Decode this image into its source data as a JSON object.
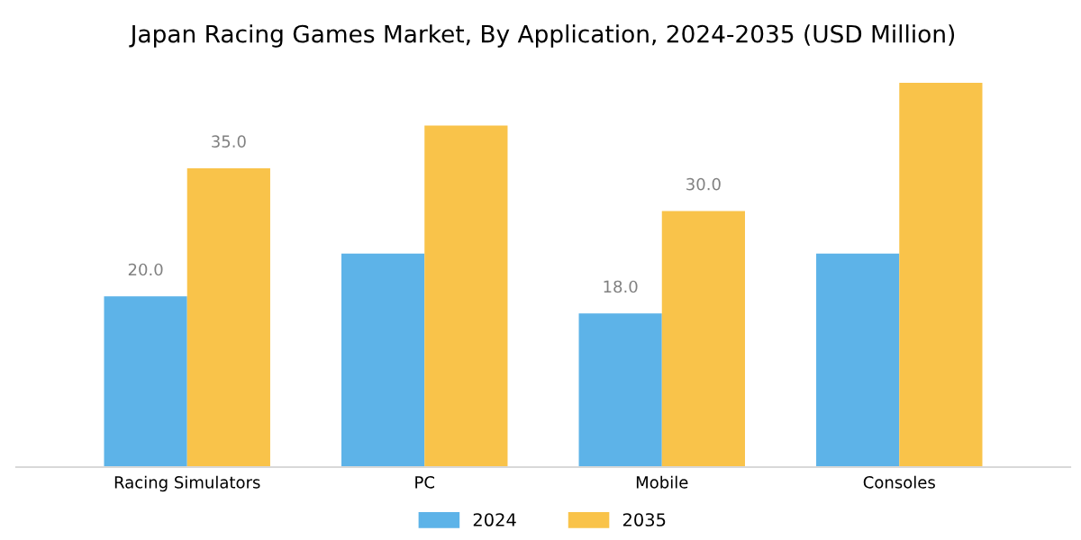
{
  "chart_data": {
    "type": "bar",
    "title": "Japan Racing Games Market, By Application, 2024-2035 (USD Million)",
    "categories": [
      "Racing Simulators",
      "PC",
      "Mobile",
      "Consoles"
    ],
    "series": [
      {
        "name": "2024",
        "color": "#5db3e8",
        "values": [
          20,
          25,
          18,
          25
        ],
        "value_labels": [
          "20.0",
          null,
          "18.0",
          null
        ]
      },
      {
        "name": "2035",
        "color": "#f9c34a",
        "values": [
          35,
          40,
          30,
          45
        ],
        "value_labels": [
          "35.0",
          null,
          "30.0",
          null
        ]
      }
    ],
    "legend": "bottom",
    "grid": false,
    "tick_labels": "x"
  }
}
